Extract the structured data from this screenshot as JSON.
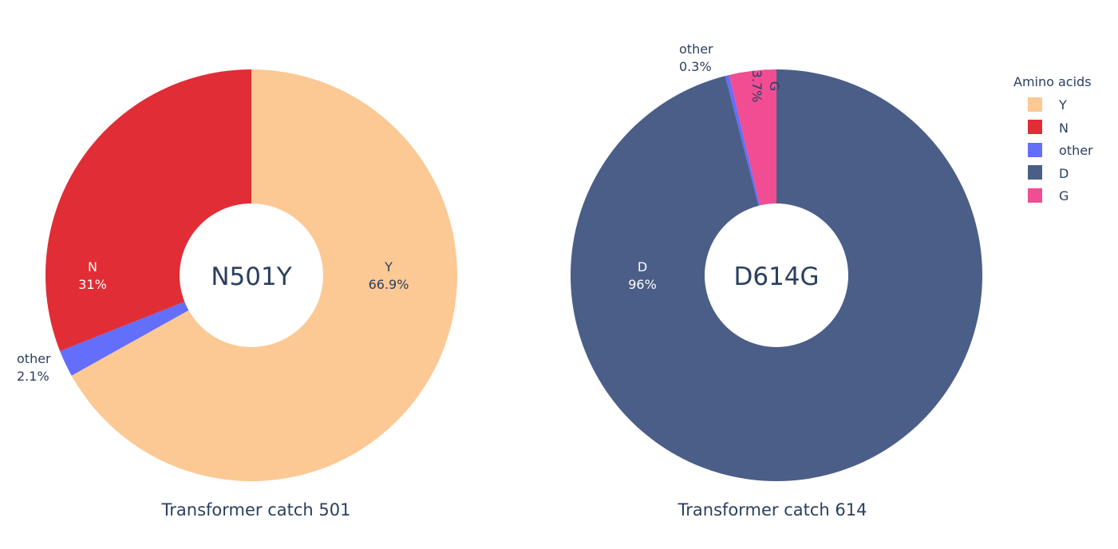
{
  "chart_data": [
    {
      "type": "pie",
      "hole": true,
      "center_label": "N501Y",
      "caption": "Transformer catch 501",
      "slices": [
        {
          "label": "Y",
          "value": 66.9,
          "text": "Y",
          "pct_text": "66.9%"
        },
        {
          "label": "other",
          "value": 2.1,
          "text": "other",
          "pct_text": "2.1%"
        },
        {
          "label": "N",
          "value": 31.0,
          "text": "N",
          "pct_text": "31%"
        }
      ]
    },
    {
      "type": "pie",
      "hole": true,
      "center_label": "D614G",
      "caption": "Transformer catch 614",
      "slices": [
        {
          "label": "D",
          "value": 96.0,
          "text": "D",
          "pct_text": "96%"
        },
        {
          "label": "other",
          "value": 0.3,
          "text": "other",
          "pct_text": "0.3%"
        },
        {
          "label": "G",
          "value": 3.7,
          "text": "G",
          "pct_text": "3.7%"
        }
      ]
    }
  ],
  "legend": {
    "title": "Amino acids",
    "placement": "top-right",
    "items": [
      {
        "label": "Y",
        "color": "#FCC893"
      },
      {
        "label": "N",
        "color": "#E12D35"
      },
      {
        "label": "other",
        "color": "#636EFA"
      },
      {
        "label": "D",
        "color": "#4B5E88"
      },
      {
        "label": "G",
        "color": "#F04D92"
      }
    ]
  },
  "colors": {
    "Y": "#FCC893",
    "N": "#E12D35",
    "other": "#636EFA",
    "D": "#4B5E88",
    "G": "#F04D92"
  }
}
